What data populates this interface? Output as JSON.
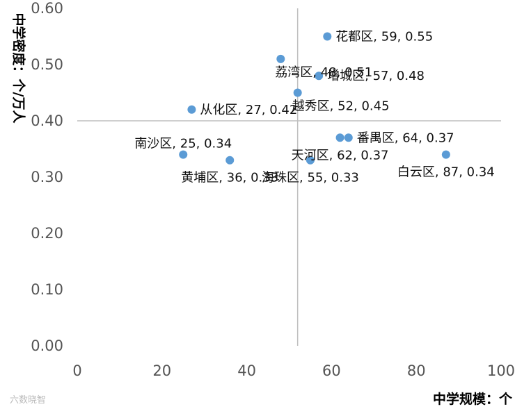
{
  "chart_data": {
    "type": "scatter",
    "xlabel": "中学规模：个",
    "ylabel": "中学密度：个/万人",
    "xlim": [
      0,
      100
    ],
    "ylim": [
      0,
      0.6
    ],
    "xticks": [
      "0",
      "20",
      "40",
      "60",
      "80",
      "100"
    ],
    "yticks": [
      "0.00",
      "0.10",
      "0.20",
      "0.30",
      "0.40",
      "0.50",
      "0.60"
    ],
    "reference_lines": {
      "x": 52,
      "y": 0.4
    },
    "grid": false,
    "colors": {
      "marker": "#5B9BD5",
      "reference_line": "#BFBFBF"
    },
    "points": [
      {
        "name": "花都区",
        "x": 59,
        "y": 0.55,
        "label": "花都区, 59, 0.55",
        "label_pos": "right"
      },
      {
        "name": "荔湾区",
        "x": 48,
        "y": 0.51,
        "label": "荔湾区, 48, 0.51",
        "label_pos": "below-right"
      },
      {
        "name": "增城区",
        "x": 57,
        "y": 0.48,
        "label": "增城区, 57, 0.48",
        "label_pos": "right"
      },
      {
        "name": "越秀区",
        "x": 52,
        "y": 0.45,
        "label": "越秀区, 52, 0.45",
        "label_pos": "below-right"
      },
      {
        "name": "从化区",
        "x": 27,
        "y": 0.42,
        "label": "从化区, 27, 0.42",
        "label_pos": "right"
      },
      {
        "name": "南沙区",
        "x": 25,
        "y": 0.34,
        "label": "南沙区, 25, 0.34",
        "label_pos": "above"
      },
      {
        "name": "黄埔区",
        "x": 36,
        "y": 0.33,
        "label": "黄埔区, 36, 0.33",
        "label_pos": "below"
      },
      {
        "name": "海珠区",
        "x": 55,
        "y": 0.33,
        "label": "海珠区, 55, 0.33",
        "label_pos": "below"
      },
      {
        "name": "番禺区",
        "x": 64,
        "y": 0.37,
        "label": "番禺区, 64, 0.37",
        "label_pos": "right"
      },
      {
        "name": "天河区",
        "x": 62,
        "y": 0.37,
        "label": "天河区, 62, 0.37",
        "label_pos": "below"
      },
      {
        "name": "白云区",
        "x": 87,
        "y": 0.34,
        "label": "白云区, 87, 0.34",
        "label_pos": "below"
      }
    ]
  },
  "watermark": "六数晓智"
}
